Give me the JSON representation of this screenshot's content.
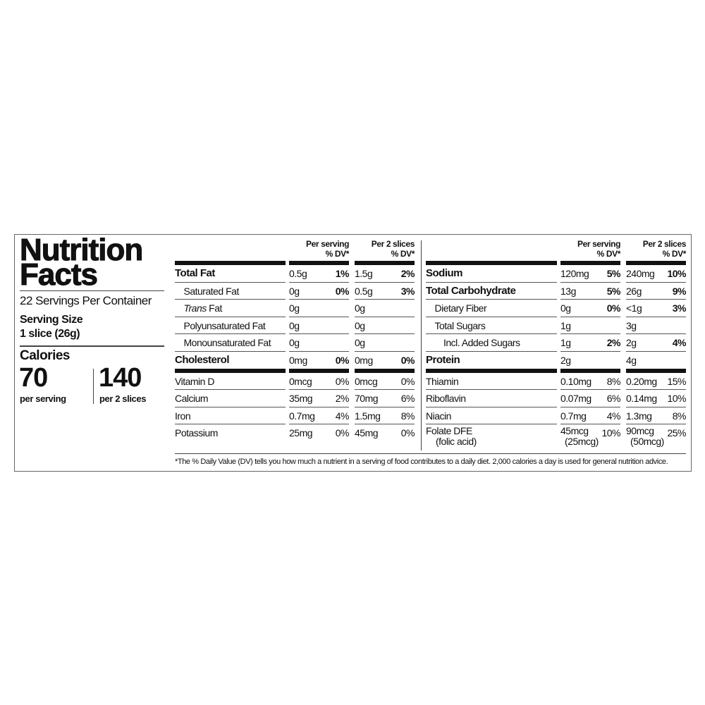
{
  "title_line1": "Nutrition",
  "title_line2": "Facts",
  "servings_per_container": "22 Servings Per Container",
  "serving_size_label": "Serving Size",
  "serving_size_value": "1 slice (26g)",
  "calories_label": "Calories",
  "calories_per_serving": "70",
  "calories_per_serving_label": "per serving",
  "calories_per_2": "140",
  "calories_per_2_label": "per 2 slices",
  "col_headers": {
    "c1_line1": "Per serving",
    "c1_line2": "% DV*",
    "c2_line1": "Per 2 slices",
    "c2_line2": "% DV*"
  },
  "left_table": {
    "group1": [
      {
        "label": "Total Fat",
        "bold": true,
        "indent": 0,
        "a1": "0.5g",
        "d1": "1%",
        "a2": "1.5g",
        "d2": "2%"
      },
      {
        "label": "Saturated Fat",
        "indent": 1,
        "a1": "0g",
        "d1": "0%",
        "a2": "0.5g",
        "d2": "3%",
        "dvbold": true
      },
      {
        "label_italic": "Trans",
        "label": " Fat",
        "indent": 1,
        "a1": "0g",
        "d1": "",
        "a2": "0g",
        "d2": ""
      },
      {
        "label": "Polyunsaturated Fat",
        "indent": 1,
        "a1": "0g",
        "d1": "",
        "a2": "0g",
        "d2": ""
      },
      {
        "label": "Monounsaturated Fat",
        "indent": 1,
        "a1": "0g",
        "d1": "",
        "a2": "0g",
        "d2": ""
      },
      {
        "label": "Cholesterol",
        "bold": true,
        "indent": 0,
        "a1": "0mg",
        "d1": "0%",
        "a2": "0mg",
        "d2": "0%"
      }
    ],
    "group2": [
      {
        "label": "Vitamin D",
        "a1": "0mcg",
        "d1": "0%",
        "a2": "0mcg",
        "d2": "0%"
      },
      {
        "label": "Calcium",
        "a1": "35mg",
        "d1": "2%",
        "a2": "70mg",
        "d2": "6%"
      },
      {
        "label": "Iron",
        "a1": "0.7mg",
        "d1": "4%",
        "a2": "1.5mg",
        "d2": "8%"
      },
      {
        "label": "Potassium",
        "a1": "25mg",
        "d1": "0%",
        "a2": "45mg",
        "d2": "0%"
      }
    ]
  },
  "right_table": {
    "group1": [
      {
        "label": "Sodium",
        "bold": true,
        "indent": 0,
        "a1": "120mg",
        "d1": "5%",
        "a2": "240mg",
        "d2": "10%"
      },
      {
        "label": "Total Carbohydrate",
        "bold": true,
        "indent": 0,
        "a1": "13g",
        "d1": "5%",
        "a2": "26g",
        "d2": "9%"
      },
      {
        "label": "Dietary Fiber",
        "indent": 1,
        "a1": "0g",
        "d1": "0%",
        "a2": "<1g",
        "d2": "3%",
        "dvbold": true
      },
      {
        "label": "Total Sugars",
        "indent": 1,
        "a1": "1g",
        "d1": "",
        "a2": "3g",
        "d2": ""
      },
      {
        "label": "Incl. Added Sugars",
        "indent": 2,
        "a1": "1g",
        "d1": "2%",
        "a2": "2g",
        "d2": "4%",
        "dvbold": true
      },
      {
        "label": "Protein",
        "bold": true,
        "indent": 0,
        "a1": "2g",
        "d1": "",
        "a2": "4g",
        "d2": ""
      }
    ],
    "group2": [
      {
        "label": "Thiamin",
        "a1": "0.10mg",
        "d1": "8%",
        "a2": "0.20mg",
        "d2": "15%"
      },
      {
        "label": "Riboflavin",
        "a1": "0.07mg",
        "d1": "6%",
        "a2": "0.14mg",
        "d2": "10%"
      },
      {
        "label": "Niacin",
        "a1": "0.7mg",
        "d1": "4%",
        "a2": "1.3mg",
        "d2": "8%"
      },
      {
        "label": "Folate DFE",
        "label_sub": "(folic acid)",
        "a1": "45mcg",
        "a1_sub": "(25mcg)",
        "d1": "10%",
        "a2": "90mcg",
        "a2_sub": "(50mcg)",
        "d2": "25%"
      }
    ]
  },
  "footnote": "*The % Daily Value (DV) tells you how much a nutrient in a serving of food contributes to a daily diet. 2,000 calories a day is used for general nutrition advice."
}
